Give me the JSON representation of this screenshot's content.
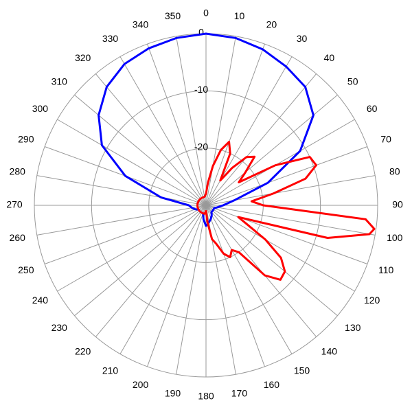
{
  "chart_data": {
    "type": "polar",
    "rlim": [
      -30,
      0
    ],
    "rticks": [
      0,
      -10,
      -20
    ],
    "thetaticks": [
      0,
      10,
      20,
      30,
      40,
      50,
      60,
      70,
      80,
      90,
      100,
      110,
      120,
      130,
      140,
      150,
      160,
      170,
      180,
      190,
      200,
      210,
      220,
      230,
      240,
      250,
      260,
      270,
      280,
      290,
      300,
      310,
      320,
      330,
      340,
      350
    ],
    "direction": "clockwise",
    "grid": true,
    "series": [
      {
        "color": "#0000ff",
        "theta": [
          0,
          10,
          20,
          30,
          40,
          50,
          60,
          70,
          80,
          90,
          100,
          110,
          120,
          130,
          140,
          150,
          160,
          170,
          180,
          190,
          200,
          210,
          220,
          230,
          240,
          250,
          260,
          270,
          280,
          290,
          300,
          310,
          320,
          330,
          340,
          350
        ],
        "values": [
          0,
          -0.3,
          -1,
          -2,
          -3,
          -5.5,
          -11,
          -18.5,
          -25,
          -27,
          -28,
          -28.5,
          -28.5,
          -28.5,
          -28.5,
          -28,
          -27.5,
          -27,
          -26.4,
          -27.5,
          -28.5,
          -28.5,
          -28.5,
          -28.5,
          -28.5,
          -28,
          -27.5,
          -27,
          -22,
          -15,
          -9,
          -5.5,
          -3,
          -1.5,
          -0.8,
          -0.3
        ]
      },
      {
        "color": "#ff0000",
        "theta": [
          0,
          5,
          10,
          15,
          20,
          25,
          30,
          35,
          40,
          45,
          50,
          55,
          60,
          65,
          70,
          75,
          80,
          85,
          90,
          95,
          98,
          100,
          105,
          110,
          115,
          120,
          125,
          130,
          135,
          140,
          145,
          150,
          155,
          160,
          165,
          170,
          175,
          180,
          190,
          200,
          210,
          220,
          230,
          240,
          250,
          260,
          270,
          280,
          290,
          300,
          310,
          320,
          330,
          340,
          350
        ],
        "values": [
          -28,
          -26,
          -23,
          -20,
          -18.2,
          -20,
          -25,
          -22,
          -19,
          -18,
          -21,
          -23,
          -16,
          -10,
          -9.5,
          -12,
          -18,
          -22,
          -20,
          -2,
          -0.3,
          -1,
          -8,
          -24,
          -22,
          -18,
          -14,
          -12,
          -11.6,
          -14,
          -20,
          -21,
          -20,
          -21,
          -23,
          -24,
          -27,
          -29,
          -28.5,
          -28.5,
          -28.5,
          -28.5,
          -28.5,
          -28.5,
          -28.5,
          -28.5,
          -28.5,
          -28.5,
          -28.5,
          -28.5,
          -28.5,
          -28.5,
          -28.5,
          -28.5,
          -28.5
        ]
      }
    ]
  }
}
